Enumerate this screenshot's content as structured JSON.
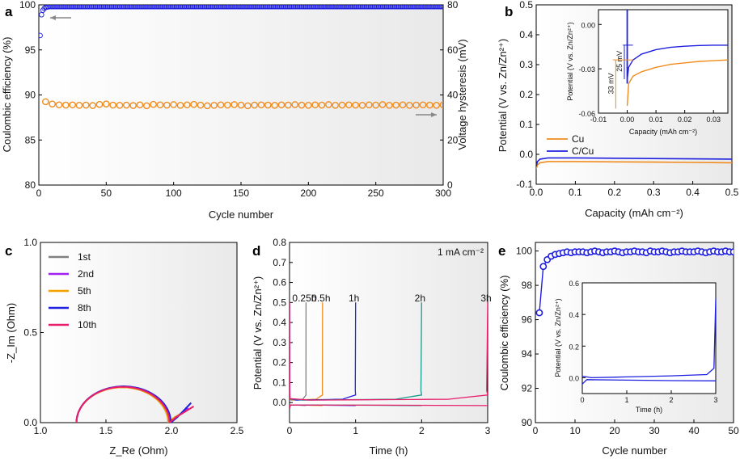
{
  "chart_data": [
    {
      "panel": "a",
      "type": "scatter",
      "xlabel": "Cycle number",
      "ylabel_left": "Coulombic efficiency (%)",
      "ylabel_right": "Voltage hysteresis (mV)",
      "xlim": [
        0,
        300
      ],
      "ylim_left": [
        80,
        100
      ],
      "ylim_right": [
        0,
        80
      ],
      "xticks": [
        "0",
        "50",
        "100",
        "150",
        "200",
        "250",
        "300"
      ],
      "yticks_left": [
        "80",
        "85",
        "90",
        "95",
        "100"
      ],
      "yticks_right": [
        "0",
        "20",
        "40",
        "60",
        "80"
      ],
      "series": [
        {
          "name": "Coulombic efficiency",
          "axis": "left",
          "color": "#1f1fe0",
          "x": [
            1,
            2,
            3,
            4,
            5,
            6,
            8,
            10,
            15,
            20,
            40,
            60,
            100,
            150,
            200,
            250,
            300
          ],
          "y": [
            96.6,
            98.9,
            99.4,
            99.6,
            99.7,
            99.75,
            99.8,
            99.8,
            99.8,
            99.8,
            99.8,
            99.8,
            99.8,
            99.8,
            99.8,
            99.8,
            99.8
          ]
        },
        {
          "name": "Voltage hysteresis",
          "axis": "right",
          "color": "#f08c1e",
          "x": [
            5,
            10,
            15,
            20,
            25,
            30,
            35,
            40,
            45,
            50,
            55,
            60,
            65,
            70,
            75,
            80,
            85,
            90,
            95,
            100,
            105,
            110,
            115,
            120,
            125,
            130,
            135,
            140,
            145,
            150,
            155,
            160,
            165,
            170,
            175,
            180,
            185,
            190,
            195,
            200,
            205,
            210,
            215,
            220,
            225,
            230,
            235,
            240,
            245,
            250,
            255,
            260,
            265,
            270,
            275,
            280,
            285,
            290,
            295,
            300
          ],
          "y": [
            37,
            36,
            35.6,
            35.5,
            35.6,
            35.4,
            35.5,
            35.3,
            35.8,
            36,
            35.5,
            35.4,
            35.5,
            35.3,
            35.6,
            35.2,
            35.8,
            35.6,
            35.5,
            35.7,
            35.4,
            35.6,
            35.8,
            35.5,
            35.2,
            35.4,
            35.6,
            35.5,
            35.7,
            35.5,
            35.2,
            35.5,
            35.6,
            35.5,
            35.4,
            35.6,
            35.5,
            35.7,
            35.5,
            35.4,
            35.6,
            35.5,
            35.7,
            35.4,
            35.5,
            35.6,
            35.5,
            35.4,
            35.6,
            35.5,
            35.7,
            35.4,
            35.5,
            35.6,
            35.4,
            35.5,
            35.6,
            35.5,
            35.4,
            35.6
          ]
        }
      ]
    },
    {
      "panel": "b",
      "type": "line",
      "xlabel": "Capacity (mAh cm⁻²)",
      "ylabel": "Potential (V vs. Zn/Zn²⁺)",
      "xlim": [
        0,
        0.5
      ],
      "ylim": [
        -0.1,
        0.5
      ],
      "xticks": [
        "0.0",
        "0.1",
        "0.2",
        "0.3",
        "0.4",
        "0.5"
      ],
      "yticks": [
        "-0.1",
        "0.0",
        "0.1",
        "0.2",
        "0.3",
        "0.4",
        "0.5"
      ],
      "legend": [
        "Cu",
        "C/Cu"
      ],
      "series": [
        {
          "name": "Cu",
          "color": "#f08c1e",
          "x": [
            0,
            0.003,
            0.01,
            0.03,
            0.1,
            0.2,
            0.3,
            0.4,
            0.5
          ],
          "y": [
            -0.05,
            -0.035,
            -0.028,
            -0.024,
            -0.024,
            -0.025,
            -0.026,
            -0.027,
            -0.028
          ]
        },
        {
          "name": "C/Cu",
          "color": "#1f1fe0",
          "x": [
            0,
            0.003,
            0.01,
            0.03,
            0.1,
            0.2,
            0.3,
            0.4,
            0.5
          ],
          "y": [
            -0.04,
            -0.024,
            -0.016,
            -0.012,
            -0.012,
            -0.013,
            -0.014,
            -0.015,
            -0.016
          ]
        }
      ],
      "inset": {
        "xlabel": "Capacity (mAh cm⁻²)",
        "ylabel": "Potential (V vs. Zn/Zn²⁺)",
        "xlim": [
          -0.01,
          0.035
        ],
        "ylim": [
          -0.06,
          0.01
        ],
        "xticks": [
          "-0.01",
          "0.00",
          "0.01",
          "0.02",
          "0.03"
        ],
        "yticks": [
          "-0.06",
          "-0.03",
          "0.00"
        ],
        "annotations": [
          "25 mV",
          "33 mV"
        ],
        "series": [
          {
            "name": "Cu",
            "color": "#f08c1e",
            "x": [
              0,
              0.0005,
              0.002,
              0.005,
              0.01,
              0.015,
              0.02,
              0.025,
              0.03,
              0.035
            ],
            "y": [
              -0.055,
              -0.04,
              -0.035,
              -0.032,
              -0.029,
              -0.027,
              -0.026,
              -0.025,
              -0.0245,
              -0.024
            ]
          },
          {
            "name": "C/Cu",
            "color": "#1f1fe0",
            "x": [
              0,
              0.0005,
              0.002,
              0.005,
              0.01,
              0.015,
              0.02,
              0.025,
              0.03,
              0.035
            ],
            "y": [
              -0.037,
              -0.029,
              -0.024,
              -0.02,
              -0.017,
              -0.0155,
              -0.0147,
              -0.0142,
              -0.014,
              -0.014
            ]
          }
        ]
      }
    },
    {
      "panel": "c",
      "type": "line",
      "xlabel": "Z_Re (Ohm)",
      "ylabel": "-Z_Im (Ohm)",
      "xlim": [
        1.0,
        2.5
      ],
      "ylim": [
        0.0,
        1.0
      ],
      "xticks": [
        "1.0",
        "1.5",
        "2.0",
        "2.5"
      ],
      "yticks": [
        "0.0",
        "0.5",
        "1.0"
      ],
      "legend": [
        "1st",
        "2nd",
        "5th",
        "8th",
        "10th"
      ],
      "series": [
        {
          "name": "1st",
          "color": "#808080",
          "r": 0.35,
          "tail": [
            2.12,
            0.07
          ]
        },
        {
          "name": "2nd",
          "color": "#a020f0",
          "r": 0.355,
          "tail": [
            2.13,
            0.08
          ]
        },
        {
          "name": "5th",
          "color": "#f5a000",
          "r": 0.35,
          "tail": [
            2.1,
            0.06
          ]
        },
        {
          "name": "8th",
          "color": "#1f1fe0",
          "r": 0.36,
          "tail": [
            2.15,
            0.11
          ]
        },
        {
          "name": "10th",
          "color": "#e81d6b",
          "r": 0.355,
          "tail": [
            2.17,
            0.09
          ]
        }
      ]
    },
    {
      "panel": "d",
      "type": "line",
      "xlabel": "Time (h)",
      "ylabel": "Potential (V vs. Zn/Zn²⁺)",
      "xlim": [
        0,
        3
      ],
      "ylim": [
        -0.1,
        0.8
      ],
      "xticks": [
        "0",
        "1",
        "2",
        "3"
      ],
      "yticks": [
        "0.0",
        "0.1",
        "0.2",
        "0.3",
        "0.4",
        "0.5",
        "0.6",
        "0.7",
        "0.8"
      ],
      "annotation": "1 mA cm⁻²",
      "series": [
        {
          "name": "0.25h",
          "color": "#808080",
          "tend": 0.25
        },
        {
          "name": "0.5h",
          "color": "#f08c1e",
          "tend": 0.5
        },
        {
          "name": "1h",
          "color": "#1f1fe0",
          "tend": 1.0
        },
        {
          "name": "2h",
          "color": "#1a9a8a",
          "tend": 2.0
        },
        {
          "name": "3h",
          "color": "#e81d6b",
          "tend": 3.0
        }
      ]
    },
    {
      "panel": "e",
      "type": "scatter",
      "xlabel": "Cycle number",
      "ylabel": "Coulombic efficiency (%)",
      "xlim": [
        0,
        50
      ],
      "ylim": [
        90,
        100.5
      ],
      "xticks": [
        "0",
        "10",
        "20",
        "30",
        "40",
        "50"
      ],
      "yticks": [
        "90",
        "92",
        "94",
        "96",
        "98",
        "100"
      ],
      "series": [
        {
          "name": "Coulombic efficiency",
          "color": "#1f1fe0",
          "x": [
            1,
            2,
            3,
            4,
            5,
            6,
            7,
            8,
            9,
            10,
            11,
            12,
            13,
            14,
            15,
            16,
            17,
            18,
            19,
            20,
            21,
            22,
            23,
            24,
            25,
            26,
            27,
            28,
            29,
            30,
            31,
            32,
            33,
            34,
            35,
            36,
            37,
            38,
            39,
            40,
            41,
            42,
            43,
            44,
            45,
            46,
            47,
            48,
            49,
            50
          ],
          "y": [
            96.4,
            99.1,
            99.5,
            99.7,
            99.8,
            99.85,
            99.9,
            99.95,
            99.9,
            99.95,
            99.95,
            99.95,
            99.9,
            99.95,
            100,
            99.95,
            99.9,
            99.95,
            99.95,
            100,
            99.95,
            99.9,
            99.95,
            99.95,
            100,
            99.95,
            99.95,
            99.9,
            100,
            99.95,
            99.95,
            100,
            99.95,
            99.9,
            99.95,
            99.95,
            100,
            99.95,
            99.95,
            99.95,
            100,
            99.95,
            99.9,
            99.95,
            100,
            99.95,
            99.95,
            100,
            99.95,
            99.95
          ]
        }
      ],
      "inset": {
        "xlabel": "Time (h)",
        "ylabel": "Potential (V vs. Zn/Zn²⁺)",
        "xlim": [
          0,
          3
        ],
        "ylim": [
          -0.1,
          0.6
        ],
        "xticks": [
          "0",
          "1",
          "2",
          "3"
        ],
        "yticks": [
          "0.0",
          "0.2",
          "0.4",
          "0.6"
        ]
      }
    }
  ],
  "panel_labels": [
    "a",
    "b",
    "c",
    "d",
    "e"
  ],
  "colors": {
    "blue": "#1f1fe0",
    "orange": "#f08c1e"
  }
}
